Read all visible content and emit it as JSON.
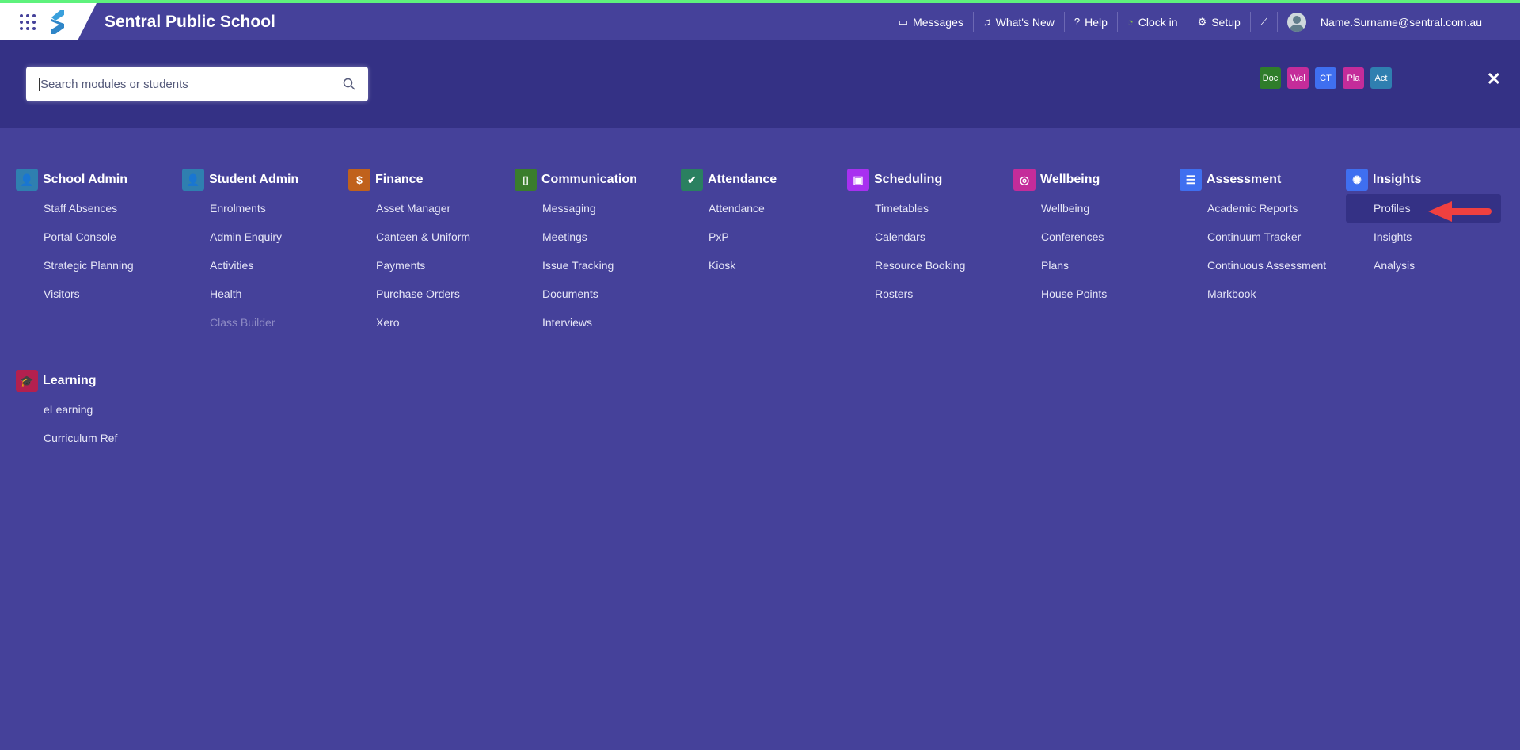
{
  "header": {
    "school_name": "Sentral Public School",
    "nav": [
      {
        "label": "Messages",
        "icon": "message-icon"
      },
      {
        "label": "What's New",
        "icon": "bell-icon"
      },
      {
        "label": "Help",
        "icon": "help-icon"
      },
      {
        "label": "Clock in",
        "icon": "clock-icon"
      },
      {
        "label": "Setup",
        "icon": "gear-icon"
      },
      {
        "label": "",
        "icon": "magic-wand-icon"
      }
    ],
    "user_email": "Name.Surname@sentral.com.au",
    "accent": "#5ef27c"
  },
  "search": {
    "placeholder": "Search modules or students",
    "value": ""
  },
  "quick_links": [
    {
      "label": "Doc",
      "color": "#2f7d2a"
    },
    {
      "label": "Wel",
      "color": "#c42c9a"
    },
    {
      "label": "CT",
      "color": "#3f6ff0"
    },
    {
      "label": "Pla",
      "color": "#c42c9a"
    },
    {
      "label": "Act",
      "color": "#2f7fb0"
    }
  ],
  "close_label": "✕",
  "modules": [
    {
      "title": "School Admin",
      "icon": "user-gear-icon",
      "glyph": "👤",
      "color": "#2f7fb0",
      "items": [
        {
          "label": "Staff Absences"
        },
        {
          "label": "Portal Console"
        },
        {
          "label": "Strategic Planning"
        },
        {
          "label": "Visitors"
        }
      ]
    },
    {
      "title": "Student Admin",
      "icon": "user-icon",
      "glyph": "👤",
      "color": "#2f7fb0",
      "items": [
        {
          "label": "Enrolments"
        },
        {
          "label": "Admin Enquiry"
        },
        {
          "label": "Activities"
        },
        {
          "label": "Health"
        },
        {
          "label": "Class Builder",
          "disabled": true
        }
      ]
    },
    {
      "title": "Finance",
      "icon": "dollar-icon",
      "glyph": "$",
      "color": "#c0611c",
      "items": [
        {
          "label": "Asset Manager"
        },
        {
          "label": "Canteen & Uniform"
        },
        {
          "label": "Payments"
        },
        {
          "label": "Purchase Orders"
        },
        {
          "label": "Xero"
        }
      ]
    },
    {
      "title": "Communication",
      "icon": "phone-icon",
      "glyph": "▯",
      "color": "#3a7d2c",
      "items": [
        {
          "label": "Messaging"
        },
        {
          "label": "Meetings"
        },
        {
          "label": "Issue Tracking"
        },
        {
          "label": "Documents"
        },
        {
          "label": "Interviews"
        }
      ]
    },
    {
      "title": "Attendance",
      "icon": "double-check-icon",
      "glyph": "✔",
      "color": "#2a8060",
      "items": [
        {
          "label": "Attendance"
        },
        {
          "label": "PxP"
        },
        {
          "label": "Kiosk"
        }
      ]
    },
    {
      "title": "Scheduling",
      "icon": "calendar-icon",
      "glyph": "▣",
      "color": "#a830f0",
      "items": [
        {
          "label": "Timetables"
        },
        {
          "label": "Calendars"
        },
        {
          "label": "Resource Booking"
        },
        {
          "label": "Rosters"
        }
      ]
    },
    {
      "title": "Wellbeing",
      "icon": "award-icon",
      "glyph": "◎",
      "color": "#c42c9a",
      "items": [
        {
          "label": "Wellbeing"
        },
        {
          "label": "Conferences"
        },
        {
          "label": "Plans"
        },
        {
          "label": "House Points"
        }
      ]
    },
    {
      "title": "Assessment",
      "icon": "checklist-icon",
      "glyph": "☰",
      "color": "#3f6ff0",
      "items": [
        {
          "label": "Academic Reports"
        },
        {
          "label": "Continuum Tracker"
        },
        {
          "label": "Continuous Assessment"
        },
        {
          "label": "Markbook"
        }
      ]
    },
    {
      "title": "Insights",
      "icon": "lightbulb-icon",
      "glyph": "✺",
      "color": "#3f6ff0",
      "items": [
        {
          "label": "Profiles",
          "active": true
        },
        {
          "label": "Insights"
        },
        {
          "label": "Analysis"
        }
      ]
    },
    {
      "title": "Learning",
      "icon": "graduation-cap-icon",
      "glyph": "🎓",
      "color": "#b3204f",
      "items": [
        {
          "label": "eLearning"
        },
        {
          "label": "Curriculum Ref"
        }
      ]
    }
  ]
}
